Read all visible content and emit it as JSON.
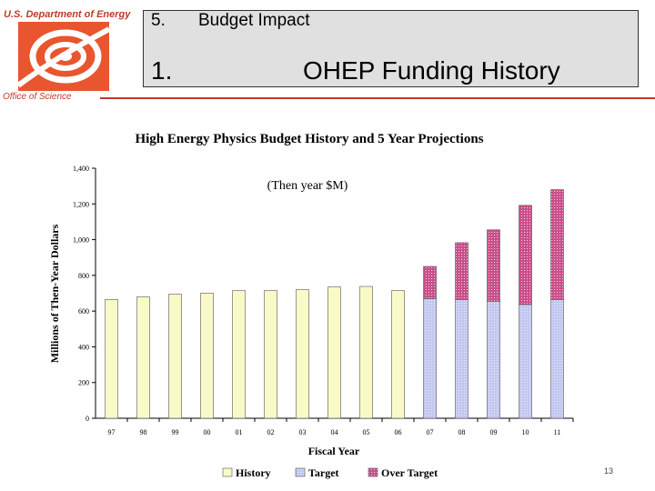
{
  "header": {
    "org": "U.S. Department of Energy",
    "office": "Office of Science",
    "line1_number": "5.",
    "line1_label": "Budget Impact",
    "line2_number": "1.",
    "line2_label": "OHEP Funding History",
    "accent_color": "#c0392b",
    "logo_icon": "doe-science-logo"
  },
  "chart_data": {
    "type": "bar",
    "title": "High Energy Physics Budget History and 5 Year Projections",
    "subtitle": "(Then year $M)",
    "xlabel": "Fiscal Year",
    "ylabel": "Millions of Then-Year Dollars",
    "ylim": [
      0,
      1400
    ],
    "yticks": [
      "0",
      "200",
      "400",
      "600",
      "800",
      "1,000",
      "1,200",
      "1,400"
    ],
    "categories": [
      "97",
      "98",
      "99",
      "00",
      "01",
      "02",
      "03",
      "04",
      "05",
      "06",
      "07",
      "08",
      "09",
      "10",
      "11"
    ],
    "stacked": true,
    "series": [
      {
        "name": "History",
        "color": "#fafac8",
        "values": [
          665,
          680,
          695,
          700,
          715,
          715,
          720,
          735,
          738,
          715,
          0,
          0,
          0,
          0,
          0
        ]
      },
      {
        "name": "Target",
        "color": "#c3c8f0",
        "values": [
          0,
          0,
          0,
          0,
          0,
          0,
          0,
          0,
          0,
          0,
          670,
          665,
          655,
          637,
          665
        ]
      },
      {
        "name": "Over Target",
        "color": "#c8508a",
        "values": [
          0,
          0,
          0,
          0,
          0,
          0,
          0,
          0,
          0,
          0,
          180,
          318,
          400,
          555,
          615
        ]
      }
    ],
    "legend_position": "bottom",
    "grid": false
  },
  "footer": {
    "page_number": "13"
  }
}
